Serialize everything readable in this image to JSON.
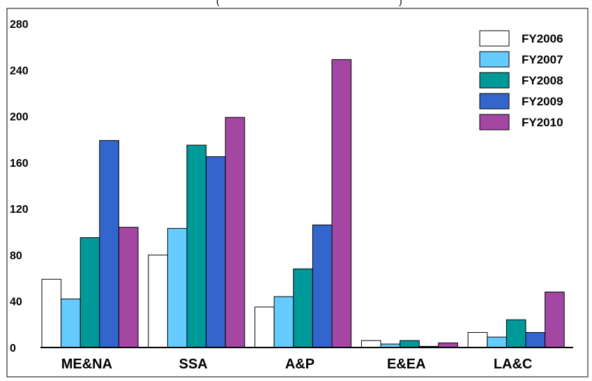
{
  "chart_data": {
    "type": "bar",
    "title_fragments": [
      "(",
      ")"
    ],
    "categories": [
      "ME&NA",
      "SSA",
      "A&P",
      "E&EA",
      "LA&C"
    ],
    "series": [
      {
        "name": "FY2006",
        "color": "#ffffff",
        "values": [
          59,
          80,
          35,
          6,
          13
        ]
      },
      {
        "name": "FY2007",
        "color": "#66ccff",
        "values": [
          42,
          103,
          44,
          3,
          9
        ]
      },
      {
        "name": "FY2008",
        "color": "#009999",
        "values": [
          95,
          175,
          68,
          6,
          24
        ]
      },
      {
        "name": "FY2009",
        "color": "#3366cc",
        "values": [
          179,
          165,
          106,
          1,
          13
        ]
      },
      {
        "name": "FY2010",
        "color": "#a347a3",
        "values": [
          104,
          199,
          249,
          4,
          48
        ]
      }
    ],
    "yticks": [
      "0",
      "40",
      "80",
      "120",
      "160",
      "200",
      "240",
      "280"
    ],
    "ylim": [
      0,
      280
    ],
    "legend_position": "top-right",
    "grid": false,
    "bar_stroke": "#000000"
  }
}
